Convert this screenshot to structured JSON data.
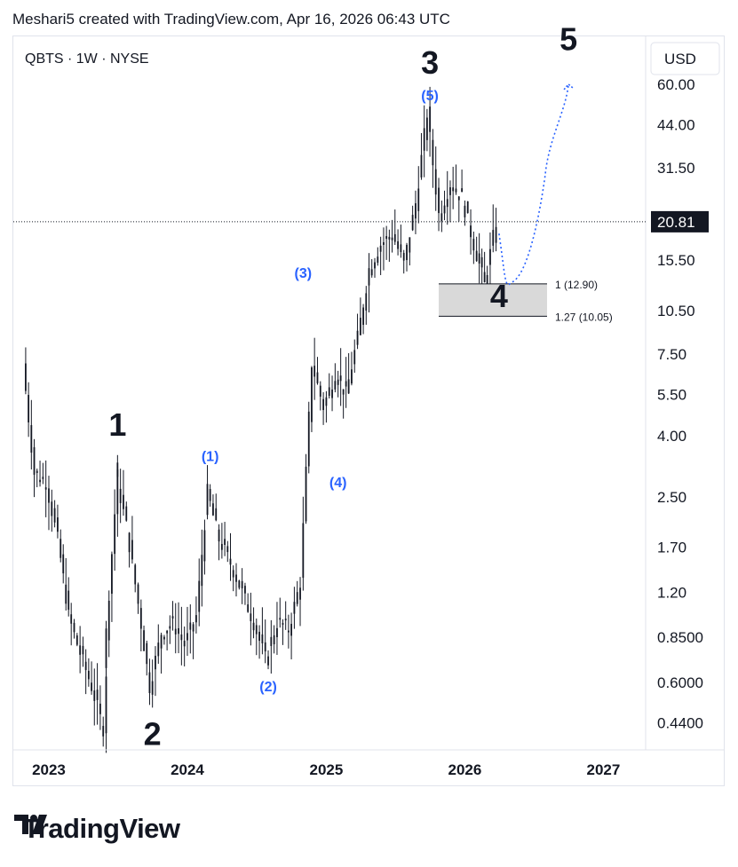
{
  "header": {
    "text": "Meshari5 created with TradingView.com, Apr 16, 2026 06:43 UTC"
  },
  "footer": {
    "brand": "TradingView"
  },
  "chart_data": {
    "type": "candlestick",
    "symbol_label": "QBTS · 1W · NYSE",
    "currency_button": "USD",
    "price_scale": "log",
    "y_ticks": [
      "60.00",
      "44.00",
      "31.50",
      "20.81",
      "15.50",
      "10.50",
      "7.50",
      "5.50",
      "4.00",
      "2.50",
      "1.70",
      "1.20",
      "0.8500",
      "0.6000",
      "0.4400"
    ],
    "current_price": "20.81",
    "x_ticks": [
      "2023",
      "2024",
      "2025",
      "2026",
      "2027"
    ],
    "wave_labels_major": [
      {
        "text": "1",
        "date": "2023-07",
        "price": 4.0
      },
      {
        "text": "2",
        "date": "2023-10",
        "price": 0.37
      },
      {
        "text": "3",
        "date": "2025-10",
        "price": 65
      },
      {
        "text": "4",
        "date": "2026-04",
        "price": 10.8
      },
      {
        "text": "5",
        "date": "2026-10",
        "price": 78
      }
    ],
    "wave_labels_minor": [
      {
        "text": "(1)",
        "date": "2024-03",
        "price": 3.3
      },
      {
        "text": "(2)",
        "date": "2024-08",
        "price": 0.56
      },
      {
        "text": "(3)",
        "date": "2024-11",
        "price": 13.5
      },
      {
        "text": "(4)",
        "date": "2025-02",
        "price": 2.7
      },
      {
        "text": "(5)",
        "date": "2025-10",
        "price": 53
      }
    ],
    "fib_zone": {
      "level_1": {
        "label": "1 (12.90)",
        "price": 12.9
      },
      "level_2": {
        "label": "1.27 (10.05)",
        "price": 10.05
      }
    },
    "weekly_path": [
      [
        "2022-11",
        7.0
      ],
      [
        "2022-12",
        3.0
      ],
      [
        "2023-01",
        2.8
      ],
      [
        "2023-02",
        1.8
      ],
      [
        "2023-03",
        1.0
      ],
      [
        "2023-04",
        0.75
      ],
      [
        "2023-05",
        0.58
      ],
      [
        "2023-06",
        0.42
      ],
      [
        "2023-06",
        0.65
      ],
      [
        "2023-07",
        2.2
      ],
      [
        "2023-07",
        3.1
      ],
      [
        "2023-08",
        2.0
      ],
      [
        "2023-09",
        1.1
      ],
      [
        "2023-10",
        0.58
      ],
      [
        "2023-11",
        0.88
      ],
      [
        "2023-12",
        0.95
      ],
      [
        "2024-01",
        0.8
      ],
      [
        "2024-02",
        1.0
      ],
      [
        "2024-03",
        2.6
      ],
      [
        "2024-04",
        1.8
      ],
      [
        "2024-05",
        1.5
      ],
      [
        "2024-06",
        1.2
      ],
      [
        "2024-07",
        0.95
      ],
      [
        "2024-08",
        0.72
      ],
      [
        "2024-09",
        0.95
      ],
      [
        "2024-10",
        0.9
      ],
      [
        "2024-11",
        1.3
      ],
      [
        "2024-12",
        7.0
      ],
      [
        "2025-01",
        5.0
      ],
      [
        "2025-02",
        6.5
      ],
      [
        "2025-03",
        5.5
      ],
      [
        "2025-04",
        8.5
      ],
      [
        "2025-05",
        14.5
      ],
      [
        "2025-06",
        17.5
      ],
      [
        "2025-07",
        19.0
      ],
      [
        "2025-08",
        15.0
      ],
      [
        "2025-09",
        24.0
      ],
      [
        "2025-10",
        48.0
      ],
      [
        "2025-11",
        22.0
      ],
      [
        "2025-12",
        28.0
      ],
      [
        "2026-01",
        25.0
      ],
      [
        "2026-02",
        17.5
      ],
      [
        "2026-03",
        12.8
      ],
      [
        "2026-04",
        20.81
      ]
    ],
    "projection": [
      [
        "2026-04",
        19.0
      ],
      [
        "2026-05",
        13.0
      ],
      [
        "2026-06",
        13.5
      ],
      [
        "2026-08",
        30.0
      ],
      [
        "2026-10",
        60.0
      ]
    ],
    "colors": {
      "candle": "#131722",
      "wave_minor": "#2962ff",
      "projection": "#2962ff",
      "fib_zone": "#d9d9d9",
      "price_line": "#131722"
    }
  }
}
